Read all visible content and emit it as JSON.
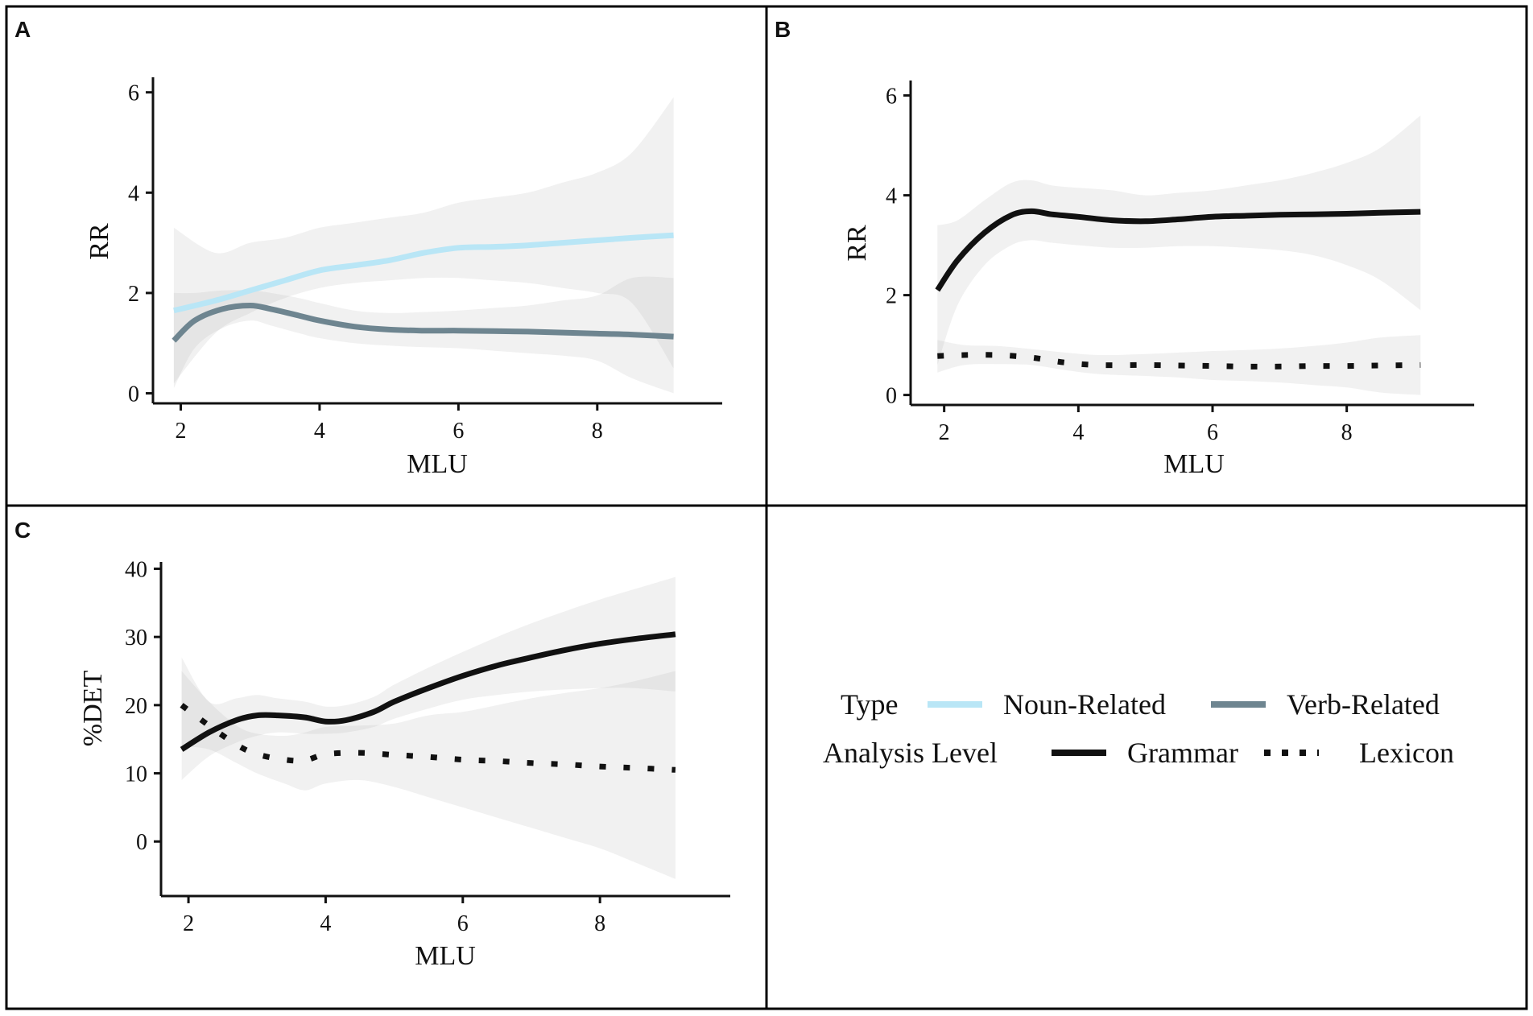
{
  "figure": {
    "panels": [
      {
        "letter": "A"
      },
      {
        "letter": "B"
      },
      {
        "letter": "C"
      }
    ],
    "legend": {
      "type_title": "Type",
      "type_items": [
        {
          "label": "Noun-Related",
          "color": "#b9e6f6"
        },
        {
          "label": "Verb-Related",
          "color": "#6e8590"
        }
      ],
      "level_title": "Analysis Level",
      "level_items": [
        {
          "label": "Grammar",
          "style": "solid",
          "color": "#111111"
        },
        {
          "label": "Lexicon",
          "style": "dotted",
          "color": "#111111"
        }
      ]
    }
  },
  "chart_data": [
    {
      "panel": "A",
      "type": "line",
      "xlabel": "MLU",
      "ylabel": "RR",
      "xlim": [
        1.6,
        9.8
      ],
      "ylim": [
        -0.2,
        6.3
      ],
      "x_ticks": [
        2,
        4,
        6,
        8
      ],
      "y_ticks": [
        0,
        2,
        4,
        6
      ],
      "grid": false,
      "series": [
        {
          "name": "Noun-Related",
          "color": "#b9e6f6",
          "style": "solid",
          "x": [
            1.9,
            2.5,
            3.0,
            3.5,
            4.0,
            4.5,
            5.0,
            5.5,
            6.0,
            6.5,
            7.0,
            7.5,
            8.0,
            8.5,
            9.1
          ],
          "y": [
            1.65,
            1.85,
            2.05,
            2.25,
            2.45,
            2.55,
            2.65,
            2.8,
            2.9,
            2.92,
            2.95,
            3.0,
            3.05,
            3.1,
            3.15
          ],
          "ci_lower": [
            0.2,
            1.2,
            1.6,
            1.9,
            2.1,
            2.2,
            2.25,
            2.3,
            2.3,
            2.25,
            2.2,
            2.1,
            2.0,
            1.8,
            0.5
          ],
          "ci_upper": [
            3.3,
            2.8,
            3.0,
            3.1,
            3.3,
            3.4,
            3.5,
            3.6,
            3.8,
            3.9,
            4.0,
            4.2,
            4.4,
            4.8,
            5.9
          ]
        },
        {
          "name": "Verb-Related",
          "color": "#6e8590",
          "style": "solid",
          "x": [
            1.9,
            2.2,
            2.6,
            3.0,
            3.3,
            3.7,
            4.0,
            4.5,
            5.0,
            5.5,
            6.0,
            6.5,
            7.0,
            7.5,
            8.0,
            8.5,
            9.1
          ],
          "y": [
            1.05,
            1.45,
            1.68,
            1.75,
            1.68,
            1.55,
            1.45,
            1.33,
            1.27,
            1.25,
            1.25,
            1.24,
            1.23,
            1.21,
            1.19,
            1.17,
            1.13
          ],
          "ci_lower": [
            0.1,
            0.9,
            1.3,
            1.45,
            1.35,
            1.2,
            1.1,
            1.0,
            0.95,
            0.92,
            0.9,
            0.85,
            0.8,
            0.75,
            0.65,
            0.3,
            0.0
          ],
          "ci_upper": [
            2.0,
            2.0,
            2.05,
            2.05,
            2.0,
            1.9,
            1.8,
            1.65,
            1.6,
            1.62,
            1.65,
            1.7,
            1.75,
            1.85,
            1.95,
            2.3,
            2.3
          ]
        }
      ]
    },
    {
      "panel": "B",
      "type": "line",
      "xlabel": "MLU",
      "ylabel": "RR",
      "xlim": [
        1.5,
        9.9
      ],
      "ylim": [
        -0.2,
        6.3
      ],
      "x_ticks": [
        2,
        4,
        6,
        8
      ],
      "y_ticks": [
        0,
        2,
        4,
        6
      ],
      "grid": false,
      "series": [
        {
          "name": "Grammar",
          "color": "#111111",
          "style": "solid",
          "x": [
            1.9,
            2.2,
            2.6,
            3.0,
            3.3,
            3.6,
            4.0,
            4.5,
            5.0,
            5.5,
            6.0,
            6.5,
            7.0,
            7.5,
            8.0,
            8.5,
            9.1
          ],
          "y": [
            2.1,
            2.7,
            3.25,
            3.6,
            3.68,
            3.62,
            3.57,
            3.5,
            3.48,
            3.52,
            3.57,
            3.59,
            3.61,
            3.62,
            3.63,
            3.65,
            3.67
          ],
          "ci_lower": [
            0.6,
            1.8,
            2.6,
            3.0,
            3.1,
            3.05,
            3.0,
            2.95,
            2.95,
            2.98,
            2.98,
            2.95,
            2.9,
            2.8,
            2.6,
            2.3,
            1.7
          ],
          "ci_upper": [
            3.4,
            3.5,
            3.9,
            4.25,
            4.3,
            4.2,
            4.15,
            4.1,
            4.0,
            4.05,
            4.1,
            4.2,
            4.3,
            4.45,
            4.65,
            4.95,
            5.6
          ]
        },
        {
          "name": "Lexicon",
          "color": "#111111",
          "style": "dotted",
          "x": [
            1.9,
            2.3,
            2.8,
            3.3,
            3.8,
            4.3,
            5.0,
            5.5,
            6.0,
            6.5,
            7.0,
            7.5,
            8.0,
            8.5,
            9.1
          ],
          "y": [
            0.78,
            0.8,
            0.8,
            0.75,
            0.65,
            0.6,
            0.6,
            0.59,
            0.58,
            0.57,
            0.57,
            0.58,
            0.58,
            0.59,
            0.6
          ],
          "ci_lower": [
            0.45,
            0.6,
            0.62,
            0.6,
            0.5,
            0.42,
            0.38,
            0.35,
            0.3,
            0.28,
            0.25,
            0.2,
            0.15,
            0.05,
            0.0
          ],
          "ci_upper": [
            1.1,
            1.0,
            0.98,
            0.92,
            0.85,
            0.8,
            0.82,
            0.85,
            0.88,
            0.9,
            0.93,
            0.98,
            1.05,
            1.15,
            1.2
          ]
        }
      ]
    },
    {
      "panel": "C",
      "type": "line",
      "xlabel": "MLU",
      "ylabel": "%DET",
      "xlim": [
        1.6,
        9.9
      ],
      "ylim": [
        -8,
        41
      ],
      "x_ticks": [
        2,
        4,
        6,
        8
      ],
      "y_ticks": [
        0,
        10,
        20,
        30,
        40
      ],
      "grid": false,
      "series": [
        {
          "name": "Grammar",
          "color": "#111111",
          "style": "solid",
          "x": [
            1.9,
            2.3,
            2.7,
            3.0,
            3.3,
            3.7,
            4.0,
            4.3,
            4.7,
            5.0,
            5.5,
            6.0,
            6.5,
            7.0,
            7.5,
            8.0,
            8.5,
            9.1
          ],
          "y": [
            13.5,
            16.0,
            17.8,
            18.5,
            18.5,
            18.2,
            17.6,
            17.8,
            19.0,
            20.5,
            22.5,
            24.3,
            25.8,
            27.0,
            28.1,
            29.0,
            29.7,
            30.4
          ],
          "ci_lower": [
            9.0,
            12.5,
            14.5,
            15.5,
            16.0,
            15.8,
            15.8,
            16.0,
            16.8,
            18.0,
            19.5,
            20.8,
            21.5,
            22.0,
            22.3,
            22.5,
            22.5,
            22.0
          ],
          "ci_upper": [
            27.0,
            20.5,
            21.0,
            21.5,
            21.0,
            20.5,
            19.8,
            20.0,
            21.2,
            23.0,
            25.5,
            27.8,
            30.0,
            32.0,
            33.8,
            35.5,
            37.0,
            38.8
          ]
        },
        {
          "name": "Lexicon",
          "color": "#111111",
          "style": "dotted",
          "x": [
            1.9,
            2.3,
            2.7,
            3.0,
            3.4,
            3.7,
            4.0,
            4.5,
            5.0,
            5.5,
            6.0,
            6.5,
            7.0,
            7.5,
            8.0,
            8.5,
            9.1
          ],
          "y": [
            20.0,
            17.0,
            14.2,
            12.8,
            12.0,
            11.9,
            12.8,
            13.0,
            12.7,
            12.4,
            12.0,
            11.8,
            11.5,
            11.3,
            11.0,
            10.8,
            10.5
          ],
          "ci_lower": [
            14.0,
            13.5,
            11.5,
            10.0,
            8.5,
            7.5,
            8.5,
            9.0,
            8.0,
            6.5,
            5.0,
            3.5,
            2.0,
            0.5,
            -1.0,
            -3.0,
            -5.5
          ],
          "ci_upper": [
            25.0,
            20.5,
            17.0,
            15.8,
            15.5,
            16.0,
            16.8,
            17.0,
            17.3,
            18.5,
            19.0,
            20.0,
            21.0,
            21.8,
            22.5,
            23.5,
            25.0
          ]
        }
      ]
    }
  ]
}
